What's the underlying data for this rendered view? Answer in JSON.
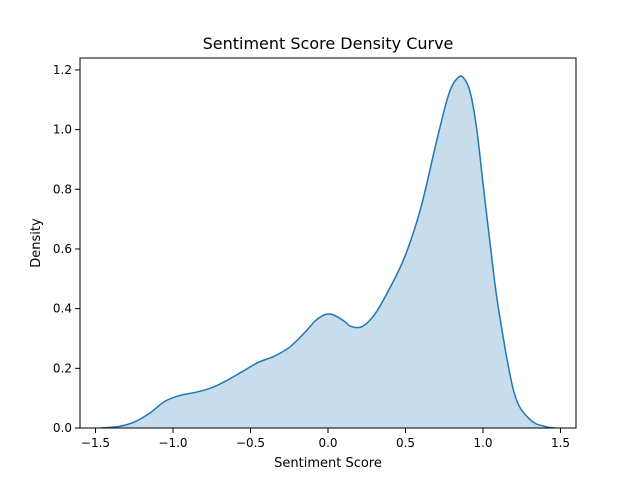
{
  "chart_data": {
    "type": "area",
    "title": "Sentiment Score Density Curve",
    "xlabel": "Sentiment Score",
    "ylabel": "Density",
    "xlim": [
      -1.6,
      1.6
    ],
    "ylim": [
      0.0,
      1.24
    ],
    "x_ticks": [
      -1.5,
      -1.0,
      -0.5,
      0.0,
      0.5,
      1.0,
      1.5
    ],
    "x_tick_labels": [
      "−1.5",
      "−1.0",
      "−0.5",
      "0.0",
      "0.5",
      "1.0",
      "1.5"
    ],
    "y_ticks": [
      0.0,
      0.2,
      0.4,
      0.6,
      0.8,
      1.0,
      1.2
    ],
    "y_tick_labels": [
      "0.0",
      "0.2",
      "0.4",
      "0.6",
      "0.8",
      "1.0",
      "1.2"
    ],
    "grid": false,
    "series": [
      {
        "x": [
          -1.47,
          -1.35,
          -1.25,
          -1.15,
          -1.05,
          -0.95,
          -0.85,
          -0.75,
          -0.65,
          -0.55,
          -0.45,
          -0.35,
          -0.25,
          -0.15,
          -0.08,
          -0.02,
          0.03,
          0.1,
          0.15,
          0.22,
          0.3,
          0.4,
          0.5,
          0.6,
          0.7,
          0.78,
          0.84,
          0.88,
          0.92,
          0.96,
          1.0,
          1.05,
          1.1,
          1.2,
          1.3,
          1.4,
          1.47
        ],
        "y": [
          0.0,
          0.005,
          0.02,
          0.05,
          0.09,
          0.11,
          0.12,
          0.135,
          0.16,
          0.19,
          0.22,
          0.24,
          0.27,
          0.32,
          0.36,
          0.38,
          0.38,
          0.36,
          0.34,
          0.34,
          0.38,
          0.47,
          0.58,
          0.74,
          0.96,
          1.12,
          1.175,
          1.17,
          1.12,
          1.0,
          0.82,
          0.6,
          0.4,
          0.12,
          0.03,
          0.005,
          0.0
        ]
      }
    ],
    "colors": {
      "line": "#1f77b4",
      "fill": "#1f77b4",
      "fill_opacity": "0.25"
    }
  }
}
